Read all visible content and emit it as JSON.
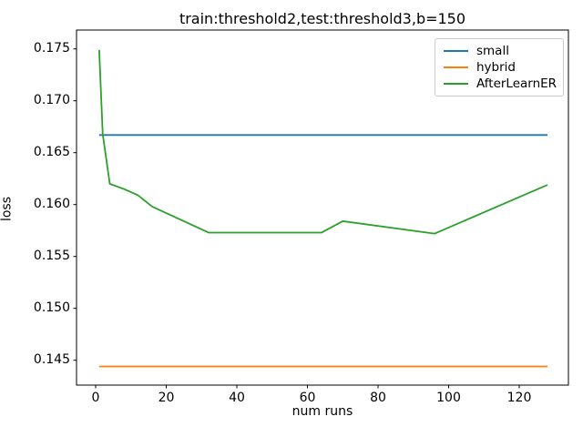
{
  "title": "train:threshold2,test:threshold3,b=150",
  "chart_data": {
    "type": "line",
    "title": "train:threshold2,test:threshold3,b=150",
    "xlabel": "num runs",
    "ylabel": "loss",
    "xlim": [
      -5.42,
      133.93
    ],
    "ylim": [
      0.142605,
      0.176816
    ],
    "grid": false,
    "legend_position": "upper right",
    "xticks": [
      0,
      20,
      40,
      60,
      80,
      100,
      120
    ],
    "xtick_labels": [
      "0",
      "20",
      "40",
      "60",
      "80",
      "100",
      "120"
    ],
    "yticks": [
      0.145,
      0.15,
      0.155,
      0.16,
      0.165,
      0.17,
      0.175
    ],
    "ytick_labels": [
      "0.145",
      "0.150",
      "0.155",
      "0.160",
      "0.165",
      "0.170",
      "0.175"
    ],
    "series": [
      {
        "name": "small",
        "color": "#1f77b4",
        "x": [
          1,
          128
        ],
        "y": [
          0.1667,
          0.1667
        ]
      },
      {
        "name": "hybrid",
        "color": "#ff7f0e",
        "x": [
          1,
          128
        ],
        "y": [
          0.1444,
          0.1444
        ]
      },
      {
        "name": "AfterLearnER",
        "color": "#2ca02c",
        "x": [
          1,
          2,
          4,
          8,
          12,
          16,
          32,
          64,
          70,
          96,
          128
        ],
        "y": [
          0.1749,
          0.1668,
          0.162,
          0.1615,
          0.1609,
          0.1598,
          0.1573,
          0.1573,
          0.1584,
          0.1572,
          0.1619
        ]
      }
    ]
  }
}
